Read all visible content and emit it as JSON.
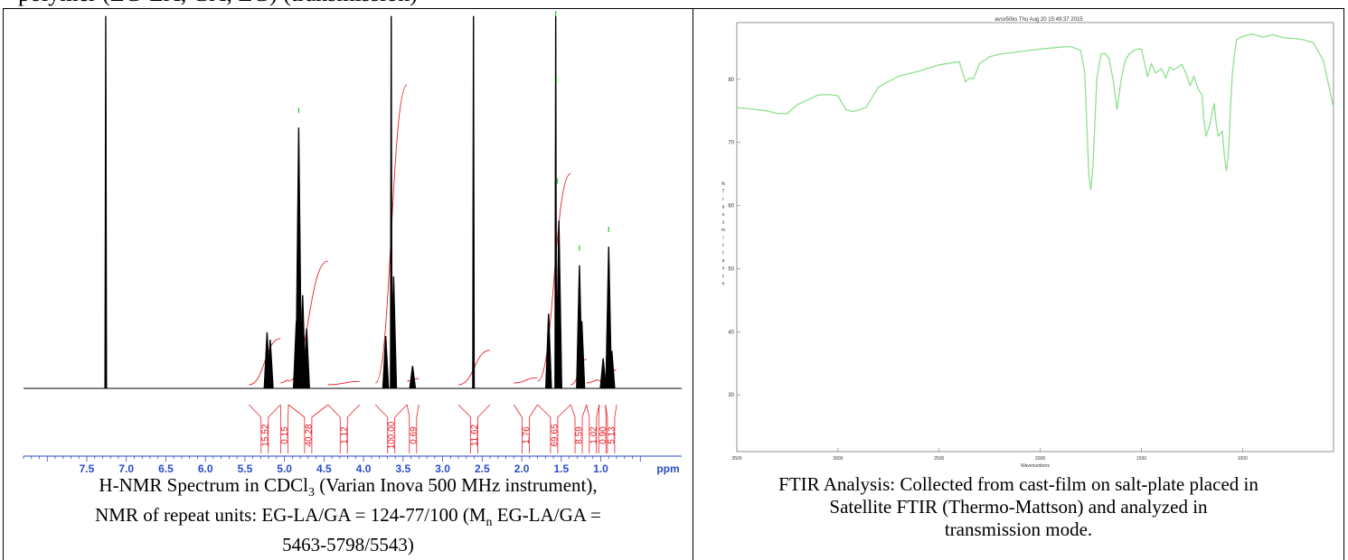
{
  "header_fragment": "polymer (EG-LA, GA, EG) (transmission)",
  "nmr": {
    "caption_line1": "H-NMR Spectrum in CDCl",
    "caption_sub3": "3",
    "caption_line1_rest": " (Varian Inova 500 MHz instrument),",
    "caption_line2": "NMR of repeat units: EG-LA/GA = 124-77/100 (M",
    "caption_sub_n": "n",
    "caption_line2_rest": " EG-LA/GA =",
    "caption_line3": "5463-5798/5543)",
    "axis_unit": "ppm"
  },
  "ftir": {
    "plot_header": "avsx50ks  Thu Aug 20 15:49:37 2015",
    "xlabel": "Wavenumbers",
    "ylabel_letters": [
      "%",
      "T",
      "r",
      "a",
      "n",
      "s",
      "m",
      "i",
      "t",
      "t",
      "a",
      "n",
      "c",
      "e"
    ],
    "caption_line1": "FTIR Analysis: Collected from cast-film on salt-plate placed in",
    "caption_line2": "Satellite FTIR (Thermo-Mattson) and analyzed in",
    "caption_line3": "transmission mode."
  },
  "chart_data": [
    {
      "type": "line",
      "title": "",
      "xlabel": "ppm",
      "ylabel": "",
      "xlim": [
        8.3,
        0.0
      ],
      "x_reversed": true,
      "x_ticks": [
        7.5,
        7.0,
        6.5,
        6.0,
        5.5,
        5.0,
        4.5,
        4.0,
        3.5,
        3.0,
        2.5,
        2.0,
        1.5,
        1.0
      ],
      "x_tick_labels": [
        "7.5",
        "7.0",
        "6.5",
        "6.0",
        "5.5",
        "5.0",
        "4.5",
        "4.0",
        "3.5",
        "3.0",
        "2.5",
        "2.0",
        "1.5",
        "1.0"
      ],
      "line_color": "#000000",
      "integral_color": "#e8202a",
      "peaks": [
        {
          "ppm": 7.26,
          "height": 1.0
        },
        {
          "ppm": 5.22,
          "height": 0.15
        },
        {
          "ppm": 5.18,
          "height": 0.13
        },
        {
          "ppm": 4.85,
          "height": 0.18
        },
        {
          "ppm": 4.82,
          "height": 0.7
        },
        {
          "ppm": 4.77,
          "height": 0.25
        },
        {
          "ppm": 4.72,
          "height": 0.16
        },
        {
          "ppm": 3.72,
          "height": 0.14
        },
        {
          "ppm": 3.65,
          "height": 1.0
        },
        {
          "ppm": 3.62,
          "height": 0.3
        },
        {
          "ppm": 3.38,
          "height": 0.06
        },
        {
          "ppm": 2.61,
          "height": 1.0
        },
        {
          "ppm": 1.66,
          "height": 0.2
        },
        {
          "ppm": 1.57,
          "height": 1.0
        },
        {
          "ppm": 1.53,
          "height": 0.45
        },
        {
          "ppm": 1.27,
          "height": 0.33
        },
        {
          "ppm": 1.24,
          "height": 0.18
        },
        {
          "ppm": 0.97,
          "height": 0.08
        },
        {
          "ppm": 0.9,
          "height": 0.38
        },
        {
          "ppm": 0.86,
          "height": 0.1
        }
      ],
      "integrals": [
        {
          "from": 5.45,
          "to": 5.05,
          "value": "15.52"
        },
        {
          "from": 5.05,
          "to": 4.95,
          "value": "0.15"
        },
        {
          "from": 4.95,
          "to": 4.45,
          "value": "40.28"
        },
        {
          "from": 4.45,
          "to": 4.05,
          "value": "1.12"
        },
        {
          "from": 3.85,
          "to": 3.45,
          "value": "100.00"
        },
        {
          "from": 3.45,
          "to": 3.3,
          "value": "0.69"
        },
        {
          "from": 2.8,
          "to": 2.4,
          "value": "11.62"
        },
        {
          "from": 2.1,
          "to": 1.8,
          "value": "1.76"
        },
        {
          "from": 1.8,
          "to": 1.38,
          "value": "69.65"
        },
        {
          "from": 1.38,
          "to": 1.18,
          "value": "8.59"
        },
        {
          "from": 1.18,
          "to": 1.02,
          "value": "1.02"
        },
        {
          "from": 1.02,
          "to": 0.94,
          "value": "0.90"
        },
        {
          "from": 0.94,
          "to": 0.8,
          "value": "5.13"
        }
      ]
    },
    {
      "type": "line",
      "title": "avsx50ks  Thu Aug 20 15:49:37 2015",
      "xlabel": "Wavenumbers",
      "ylabel": "%Transmittance",
      "xlim": [
        3500,
        550
      ],
      "ylim": [
        21,
        89
      ],
      "x_ticks": [
        3500,
        3000,
        2500,
        2000,
        1500,
        1000
      ],
      "y_ticks": [
        30,
        40,
        50,
        60,
        70,
        80
      ],
      "line_color": "#8fe08f",
      "series": [
        {
          "x": [
            3500,
            3450,
            3350,
            3300,
            3250,
            3200,
            3100,
            3050,
            3000,
            2960,
            2930,
            2900,
            2860,
            2800,
            2700,
            2600,
            2500,
            2400,
            2370,
            2350,
            2330,
            2300,
            2250,
            2200,
            2100,
            2000,
            1900,
            1850,
            1800,
            1780,
            1760,
            1750,
            1740,
            1720,
            1700,
            1680,
            1660,
            1640,
            1620,
            1600,
            1580,
            1560,
            1540,
            1520,
            1500,
            1480,
            1470,
            1450,
            1430,
            1400,
            1380,
            1360,
            1340,
            1300,
            1280,
            1260,
            1240,
            1220,
            1200,
            1190,
            1180,
            1160,
            1140,
            1130,
            1120,
            1100,
            1090,
            1080,
            1070,
            1060,
            1050,
            1040,
            1030,
            1000,
            950,
            900,
            850,
            800,
            750,
            700,
            650,
            600,
            570,
            550
          ],
          "y": [
            75.5,
            75.4,
            75.0,
            74.6,
            74.6,
            76.0,
            77.5,
            77.6,
            77.4,
            75.2,
            74.9,
            75.1,
            75.6,
            78.8,
            80.5,
            81.3,
            82.3,
            82.8,
            79.6,
            80.2,
            80.1,
            82.5,
            83.6,
            84.0,
            84.4,
            84.8,
            85.1,
            85.2,
            84.6,
            81.0,
            65.0,
            62.5,
            66.0,
            80.0,
            84.0,
            84.1,
            83.3,
            80.0,
            75.2,
            80.0,
            83.0,
            84.0,
            84.5,
            84.8,
            84.8,
            82.0,
            80.4,
            82.5,
            81.0,
            81.7,
            80.2,
            82.0,
            81.5,
            82.4,
            81.0,
            79.0,
            80.5,
            78.5,
            77.5,
            73.2,
            71.0,
            73.0,
            76.2,
            73.0,
            71.0,
            71.8,
            68.0,
            65.5,
            68.0,
            75.0,
            81.0,
            84.0,
            86.3,
            86.8,
            87.2,
            86.7,
            87.1,
            86.6,
            86.5,
            86.3,
            85.8,
            83.0,
            78.5,
            75.5
          ]
        }
      ]
    }
  ]
}
